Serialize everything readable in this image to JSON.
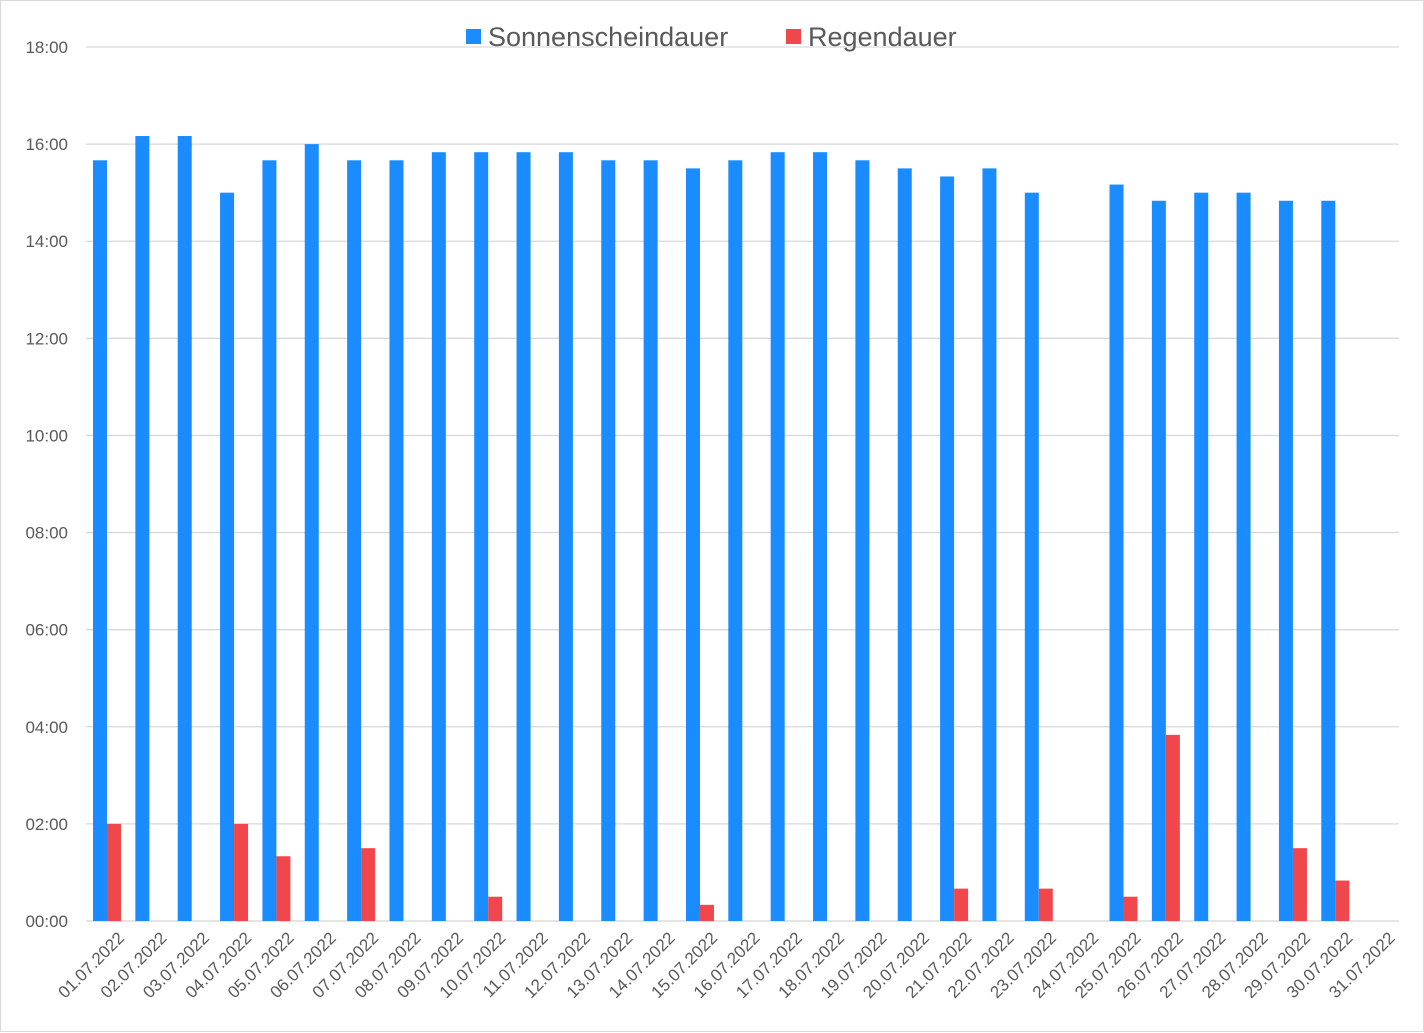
{
  "chart_data": {
    "type": "bar",
    "title": "",
    "xlabel": "",
    "ylabel": "",
    "ylim": [
      "00:00",
      "18:00"
    ],
    "y_ticks": [
      "00:00",
      "02:00",
      "04:00",
      "06:00",
      "08:00",
      "10:00",
      "12:00",
      "14:00",
      "16:00",
      "18:00"
    ],
    "grid": true,
    "legend_position": "top",
    "categories": [
      "01.07.2022",
      "02.07.2022",
      "03.07.2022",
      "04.07.2022",
      "05.07.2022",
      "06.07.2022",
      "07.07.2022",
      "08.07.2022",
      "09.07.2022",
      "10.07.2022",
      "11.07.2022",
      "12.07.2022",
      "13.07.2022",
      "14.07.2022",
      "15.07.2022",
      "16.07.2022",
      "17.07.2022",
      "18.07.2022",
      "19.07.2022",
      "20.07.2022",
      "21.07.2022",
      "22.07.2022",
      "23.07.2022",
      "24.07.2022",
      "25.07.2022",
      "26.07.2022",
      "27.07.2022",
      "28.07.2022",
      "29.07.2022",
      "30.07.2022",
      "31.07.2022"
    ],
    "series": [
      {
        "name": "Sonnenscheindauer",
        "color": "#1a8cff",
        "values": [
          "15:40",
          "16:10",
          "16:10",
          "15:00",
          "15:40",
          "16:00",
          "15:40",
          "15:40",
          "15:50",
          "15:50",
          "15:50",
          "15:50",
          "15:40",
          "15:40",
          "15:30",
          "15:40",
          "15:50",
          "15:50",
          "15:40",
          "15:30",
          "15:20",
          "15:30",
          "15:00",
          null,
          "15:10",
          "14:50",
          "15:00",
          "15:00",
          "14:50",
          "14:50",
          null
        ]
      },
      {
        "name": "Regendauer",
        "color": "#f0474c",
        "values": [
          "02:00",
          null,
          null,
          "02:00",
          "01:20",
          null,
          "01:30",
          null,
          null,
          "00:30",
          null,
          null,
          null,
          null,
          "00:20",
          null,
          null,
          null,
          null,
          null,
          "00:40",
          null,
          "00:40",
          null,
          "00:30",
          "03:50",
          null,
          null,
          "01:30",
          "00:50",
          null
        ]
      }
    ]
  },
  "colors": {
    "grid": "#d9d9d9",
    "axis_text": "#595959",
    "frame": "#d9d9d9"
  }
}
